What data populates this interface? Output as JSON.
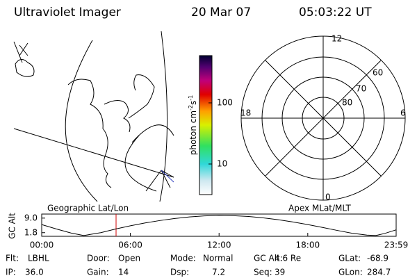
{
  "header": {
    "title": "Ultraviolet Imager",
    "date": "20 Mar 07",
    "time": "05:03:22 UT"
  },
  "colorbar": {
    "label": "photon cm",
    "exp1": "-2",
    "unit2": "s",
    "exp2": "-1",
    "lim": [
      3.16,
      593
    ],
    "ticks": [
      10,
      100
    ],
    "log": true
  },
  "polar": {
    "mlt_labels": [
      "12",
      "18",
      "6",
      "0"
    ],
    "lat_labels": [
      "60",
      "70",
      "80"
    ]
  },
  "chart_data": {
    "type": "line",
    "left_title": "Geographic Lat/Lon",
    "right_title": "Apex MLat/MLT",
    "y_label": "GC Alt",
    "x": [
      0,
      1,
      2,
      2.85,
      4,
      5,
      6,
      7,
      8,
      9,
      10,
      11,
      12,
      13,
      14,
      15,
      16,
      17,
      18,
      19,
      20,
      21,
      22,
      22.6,
      23.2,
      23.98
    ],
    "series": [
      {
        "name": "GC Alt",
        "color": "#000000",
        "values": [
          5.8,
          3.6,
          1.6,
          0.4,
          1.8,
          3.6,
          5.2,
          6.6,
          7.8,
          8.8,
          9.6,
          10.1,
          10.3,
          10.2,
          9.8,
          9.1,
          8.2,
          7.1,
          5.8,
          4.4,
          2.9,
          1.5,
          0.6,
          0.4,
          1.4,
          3.2
        ]
      }
    ],
    "xlim": [
      0,
      23.98
    ],
    "ylim": [
      0,
      11
    ],
    "xticks": [
      {
        "value": 0,
        "label": "00:00"
      },
      {
        "value": 6,
        "label": "06:00"
      },
      {
        "value": 12,
        "label": "12:00"
      },
      {
        "value": 18,
        "label": "18:00"
      },
      {
        "value": 23.98,
        "label": "23:59"
      }
    ],
    "yticks": [
      1.8,
      {
        "value": 9,
        "label": "9.0"
      }
    ]
  },
  "footer": [
    [
      {
        "label": "Flt:",
        "value": "LBHL"
      },
      {
        "label": "Door:",
        "value": "Open"
      },
      {
        "label": "Mode:",
        "value": "Normal"
      },
      {
        "label": "GC Alt:",
        "value": "4.6 Re"
      },
      {
        "label": "GLat:",
        "value": "-68.9"
      }
    ],
    [
      {
        "label": "IP:",
        "value": "36.0"
      },
      {
        "label": "Gain:",
        "value": "14"
      },
      {
        "label": "Dsp:",
        "value": "7.2"
      },
      {
        "label": "Seq:",
        "value": "39"
      },
      {
        "label": "GLon:",
        "value": "284.7"
      }
    ]
  ]
}
